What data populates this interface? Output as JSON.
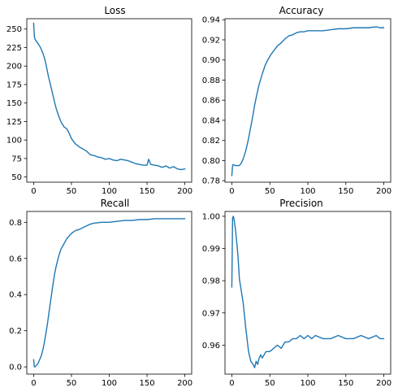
{
  "series_color": "#1f77b4",
  "chart_data": [
    {
      "type": "line",
      "title": "Loss",
      "xlabel": "",
      "ylabel": "",
      "xlim": [
        -9,
        209
      ],
      "ylim": [
        43,
        264
      ],
      "xticks": [
        0,
        50,
        100,
        150,
        200
      ],
      "yticks": [
        50,
        75,
        100,
        125,
        150,
        175,
        200,
        225,
        250
      ],
      "grid": false,
      "legend": "none",
      "series": [
        {
          "x": [
            0,
            1,
            2,
            4,
            6,
            8,
            10,
            12,
            14,
            16,
            18,
            20,
            22,
            25,
            28,
            30,
            33,
            36,
            40,
            44,
            47,
            50,
            55,
            60,
            65,
            70,
            75,
            80,
            85,
            90,
            95,
            100,
            105,
            110,
            115,
            120,
            125,
            130,
            135,
            140,
            145,
            150,
            152,
            155,
            160,
            165,
            170,
            175,
            180,
            185,
            190,
            195,
            200
          ],
          "y": [
            258,
            240,
            236,
            233,
            230,
            227,
            223,
            218,
            212,
            204,
            194,
            184,
            176,
            163,
            150,
            142,
            133,
            125,
            118,
            115,
            109,
            102,
            95,
            91,
            88,
            85,
            80,
            79,
            77,
            76,
            74,
            75,
            73,
            72,
            74,
            73,
            72,
            70,
            68,
            67,
            66,
            66,
            74,
            67,
            66,
            65,
            63,
            65,
            62,
            64,
            61,
            60,
            61
          ]
        }
      ]
    },
    {
      "type": "line",
      "title": "Accuracy",
      "xlabel": "",
      "ylabel": "",
      "xlim": [
        -9,
        209
      ],
      "ylim": [
        0.7785,
        0.941
      ],
      "xticks": [
        0,
        50,
        100,
        150,
        200
      ],
      "yticks": [
        0.78,
        0.8,
        0.82,
        0.84,
        0.86,
        0.88,
        0.9,
        0.92,
        0.94
      ],
      "ytick_labels": [
        "0.78",
        "0.80",
        "0.82",
        "0.84",
        "0.86",
        "0.88",
        "0.90",
        "0.92",
        "0.94"
      ],
      "grid": false,
      "legend": "none",
      "series": [
        {
          "x": [
            0,
            1,
            2,
            4,
            6,
            8,
            10,
            12,
            14,
            16,
            18,
            20,
            22,
            25,
            28,
            30,
            33,
            36,
            40,
            44,
            48,
            52,
            56,
            60,
            65,
            70,
            75,
            80,
            85,
            90,
            95,
            100,
            110,
            120,
            130,
            140,
            150,
            160,
            170,
            180,
            190,
            195,
            200
          ],
          "y": [
            0.785,
            0.795,
            0.796,
            0.795,
            0.795,
            0.795,
            0.795,
            0.797,
            0.8,
            0.804,
            0.809,
            0.815,
            0.822,
            0.834,
            0.846,
            0.855,
            0.866,
            0.876,
            0.886,
            0.895,
            0.901,
            0.906,
            0.91,
            0.914,
            0.917,
            0.921,
            0.924,
            0.925,
            0.927,
            0.928,
            0.928,
            0.929,
            0.929,
            0.929,
            0.93,
            0.931,
            0.931,
            0.932,
            0.932,
            0.932,
            0.933,
            0.932,
            0.932
          ]
        }
      ]
    },
    {
      "type": "line",
      "title": "Recall",
      "xlabel": "",
      "ylabel": "",
      "xlim": [
        -9,
        209
      ],
      "ylim": [
        -0.04,
        0.86
      ],
      "xticks": [
        0,
        50,
        100,
        150,
        200
      ],
      "yticks": [
        0.0,
        0.2,
        0.4,
        0.6,
        0.8
      ],
      "ytick_labels": [
        "0.0",
        "0.2",
        "0.4",
        "0.6",
        "0.8"
      ],
      "grid": false,
      "legend": "none",
      "series": [
        {
          "x": [
            0,
            1,
            2,
            4,
            6,
            8,
            10,
            12,
            14,
            16,
            18,
            20,
            22,
            25,
            28,
            30,
            33,
            36,
            40,
            44,
            48,
            52,
            56,
            60,
            65,
            70,
            75,
            80,
            90,
            100,
            110,
            120,
            130,
            140,
            150,
            160,
            170,
            180,
            190,
            200
          ],
          "y": [
            0.04,
            0.0,
            0.0,
            0.01,
            0.02,
            0.04,
            0.06,
            0.09,
            0.13,
            0.18,
            0.23,
            0.29,
            0.35,
            0.44,
            0.52,
            0.56,
            0.61,
            0.65,
            0.68,
            0.71,
            0.73,
            0.745,
            0.755,
            0.76,
            0.77,
            0.78,
            0.79,
            0.795,
            0.8,
            0.8,
            0.805,
            0.81,
            0.81,
            0.815,
            0.815,
            0.82,
            0.82,
            0.82,
            0.82,
            0.82
          ]
        }
      ]
    },
    {
      "type": "line",
      "title": "Precision",
      "xlabel": "",
      "ylabel": "",
      "xlim": [
        -9,
        209
      ],
      "ylim": [
        0.951,
        1.0015
      ],
      "xticks": [
        0,
        50,
        100,
        150,
        200
      ],
      "yticks": [
        0.96,
        0.97,
        0.98,
        0.99,
        1.0
      ],
      "ytick_labels": [
        "0.96",
        "0.97",
        "0.98",
        "0.99",
        "1.00"
      ],
      "grid": false,
      "legend": "none",
      "series": [
        {
          "x": [
            0,
            1,
            2,
            3,
            5,
            8,
            10,
            12,
            15,
            18,
            20,
            22,
            25,
            28,
            30,
            32,
            34,
            36,
            38,
            40,
            45,
            50,
            55,
            60,
            65,
            70,
            75,
            80,
            85,
            90,
            95,
            100,
            105,
            110,
            120,
            130,
            140,
            150,
            160,
            170,
            180,
            190,
            195,
            200
          ],
          "y": [
            0.978,
            0.9995,
            1.0,
            0.999,
            0.9955,
            0.988,
            0.9805,
            0.9775,
            0.973,
            0.966,
            0.962,
            0.958,
            0.955,
            0.954,
            0.953,
            0.955,
            0.954,
            0.956,
            0.957,
            0.956,
            0.958,
            0.958,
            0.959,
            0.96,
            0.959,
            0.961,
            0.961,
            0.962,
            0.962,
            0.963,
            0.962,
            0.963,
            0.962,
            0.963,
            0.962,
            0.962,
            0.963,
            0.962,
            0.962,
            0.963,
            0.962,
            0.963,
            0.962,
            0.962
          ]
        }
      ]
    }
  ]
}
